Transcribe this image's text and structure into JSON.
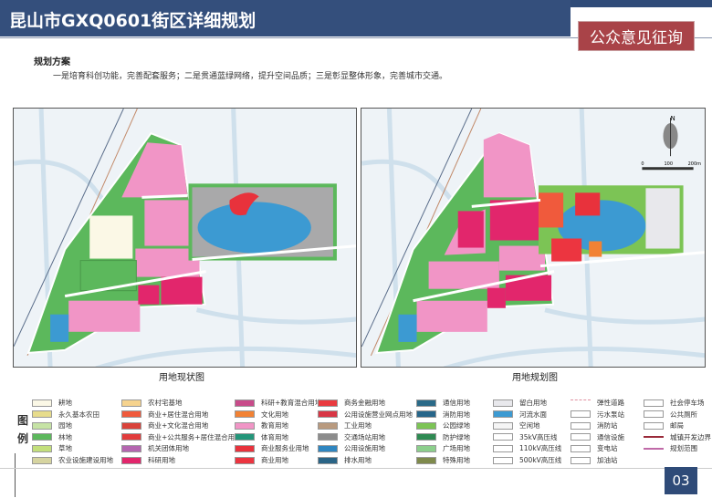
{
  "header": {
    "title": "昆山市GXQ0601街区详细规划",
    "badge": "公众意见征询"
  },
  "section": {
    "heading": "规划方案",
    "description": "一是培育科创功能，完善配套服务；二是贯通蓝绿网络，提升空间品质；三是彰显整体形象，完善城市交通。"
  },
  "maps": [
    {
      "caption": "用地现状图"
    },
    {
      "caption": "用地规划图",
      "compass": "N",
      "scale": [
        "0",
        "100",
        "200m"
      ]
    }
  ],
  "legend": {
    "title_chars": [
      "图",
      "例"
    ],
    "columns": [
      [
        {
          "label": "耕地",
          "color": "#fbf8e6"
        },
        {
          "label": "永久基本农田",
          "color": "#e7dc8c"
        },
        {
          "label": "园地",
          "color": "#c6e3a5"
        },
        {
          "label": "林地",
          "color": "#5cb85c"
        },
        {
          "label": "草地",
          "color": "#c3df7c"
        },
        {
          "label": "农业设施建设用地",
          "color": "#d6d4a0"
        }
      ],
      [
        {
          "label": "农村宅基地",
          "color": "#f6d38e"
        },
        {
          "label": "商业+居住混合用地",
          "color": "#f05a3c"
        },
        {
          "label": "商业+文化混合用地",
          "color": "#d9423a"
        },
        {
          "label": "商业+公共服务+居住混合用地",
          "color": "#e23c3c"
        },
        {
          "label": "机关团体用地",
          "color": "#b466b0"
        },
        {
          "label": "科研用地",
          "color": "#e2266c"
        }
      ],
      [
        {
          "label": "科研+教育混合用地",
          "color": "#c84b8a"
        },
        {
          "label": "文化用地",
          "color": "#f28234"
        },
        {
          "label": "教育用地",
          "color": "#f195c6"
        },
        {
          "label": "体育用地",
          "color": "#23967a"
        },
        {
          "label": "商业服务业用地",
          "color": "#e8323c"
        },
        {
          "label": "商业用地",
          "color": "#ec3540"
        }
      ],
      [
        {
          "label": "商务金融用地",
          "color": "#ea3a3f"
        },
        {
          "label": "公用设施营业网点用地",
          "color": "#d83645"
        },
        {
          "label": "工业用地",
          "color": "#b99a7f"
        },
        {
          "label": "交通场站用地",
          "color": "#8c8c8c"
        },
        {
          "label": "公用设施用地",
          "color": "#2f86c0"
        },
        {
          "label": "排水用地",
          "color": "#2a6486"
        }
      ],
      [
        {
          "label": "通信用地",
          "color": "#2a6a88"
        },
        {
          "label": "消防用地",
          "color": "#27668a"
        },
        {
          "label": "公园绿地",
          "color": "#7cc455"
        },
        {
          "label": "防护绿地",
          "color": "#2e8a52"
        },
        {
          "label": "广场用地",
          "color": "#8ccf8c"
        },
        {
          "label": "特殊用地",
          "color": "#7f8a4c"
        }
      ],
      [
        {
          "label": "留白用地",
          "color": "#e8e8ec"
        },
        {
          "label": "河流水面",
          "color": "#3c9ad2"
        },
        {
          "label": "空闲地",
          "color": "#f5f5f5"
        },
        {
          "label": "35kV高压线",
          "color": "#ffffff"
        },
        {
          "label": "110kV高压线",
          "color": "#ffffff"
        },
        {
          "label": "500kV高压线",
          "color": "#ffffff"
        }
      ],
      [
        {
          "label": "弹性道路",
          "icon": "dashed-line"
        },
        {
          "label": "污水泵站",
          "icon": "pump-icon"
        },
        {
          "label": "消防站",
          "icon": "fire-station-icon"
        },
        {
          "label": "通信设施",
          "icon": "telecom-icon"
        },
        {
          "label": "变电站",
          "icon": "substation-icon"
        },
        {
          "label": "加油站",
          "icon": "gas-station-icon"
        }
      ],
      [
        {
          "label": "社会停车场",
          "icon": "parking-icon"
        },
        {
          "label": "公共厕所",
          "icon": "toilet-icon"
        },
        {
          "label": "邮局",
          "icon": "post-icon"
        },
        {
          "label": "城镇开发边界",
          "icon": "boundary-line"
        },
        {
          "label": "规划范围",
          "icon": "plan-range-line"
        }
      ]
    ]
  },
  "page_number": "03"
}
